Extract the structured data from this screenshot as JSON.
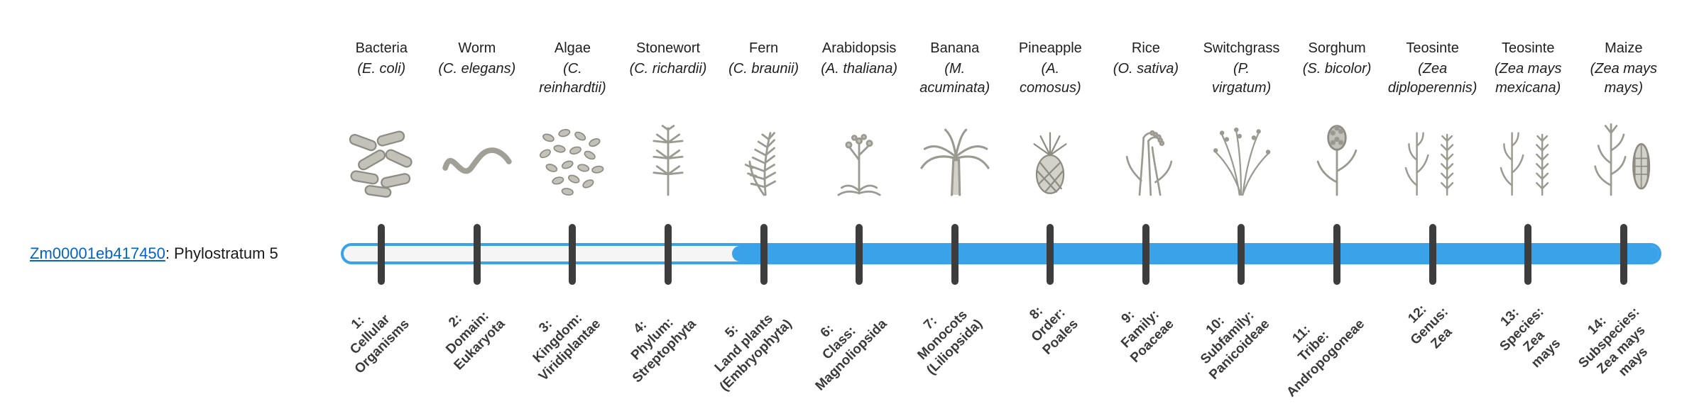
{
  "gene": {
    "id": "Zm00001eb417450",
    "label_suffix": ": Phylostratum 5"
  },
  "phylostratum": 5,
  "colors": {
    "bar_fill": "#3aa2e8",
    "bar_track": "#f5f5f5",
    "tick": "#3d3d3d",
    "link": "#0563C1",
    "illustration": "#9a9a90"
  },
  "columns": [
    {
      "name": "Bacteria",
      "sci_lines": [
        "(E. coli)"
      ],
      "icon": "bacteria",
      "stratum_lines": [
        "1:",
        "Cellular",
        "Organisms"
      ]
    },
    {
      "name": "Worm",
      "sci_lines": [
        "(C. elegans)"
      ],
      "icon": "worm",
      "stratum_lines": [
        "2:",
        "Domain:",
        "Eukaryota"
      ]
    },
    {
      "name": "Algae",
      "sci_lines": [
        "(C.",
        "reinhardtii)"
      ],
      "icon": "algae",
      "stratum_lines": [
        "3:",
        "Kingdom:",
        "Viridiplantae"
      ]
    },
    {
      "name": "Stonewort",
      "sci_lines": [
        "(C. richardii)"
      ],
      "icon": "stonewort",
      "stratum_lines": [
        "4:",
        "Phylum:",
        "Streptophyta"
      ]
    },
    {
      "name": "Fern",
      "sci_lines": [
        "(C. braunii)"
      ],
      "icon": "fern",
      "stratum_lines": [
        "5:",
        "Land plants",
        "(Embryophyta)"
      ]
    },
    {
      "name": "Arabidopsis",
      "sci_lines": [
        "(A. thaliana)"
      ],
      "icon": "arabidopsis",
      "stratum_lines": [
        "6:",
        "Class:",
        "Magnoliopsida"
      ]
    },
    {
      "name": "Banana",
      "sci_lines": [
        "(M.",
        "acuminata)"
      ],
      "icon": "banana",
      "stratum_lines": [
        "7:",
        "Monocots",
        "(Liliopsida)"
      ]
    },
    {
      "name": "Pineapple",
      "sci_lines": [
        "(A.",
        "comosus)"
      ],
      "icon": "pineapple",
      "stratum_lines": [
        "8:",
        "Order:",
        "Poales"
      ]
    },
    {
      "name": "Rice",
      "sci_lines": [
        "(O. sativa)"
      ],
      "icon": "rice",
      "stratum_lines": [
        "9:",
        "Family:",
        "Poaceae"
      ]
    },
    {
      "name": "Switchgrass",
      "sci_lines": [
        "(P.",
        "virgatum)"
      ],
      "icon": "switchgrass",
      "stratum_lines": [
        "10:",
        "Subfamily:",
        "Panicoideae"
      ]
    },
    {
      "name": "Sorghum",
      "sci_lines": [
        "(S. bicolor)"
      ],
      "icon": "sorghum",
      "stratum_lines": [
        "11:",
        "Tribe:",
        "Andropogoneae"
      ]
    },
    {
      "name": "Teosinte",
      "sci_lines": [
        "(Zea",
        "diploperennis)"
      ],
      "icon": "teosinte",
      "stratum_lines": [
        "12:",
        "Genus:",
        "Zea"
      ]
    },
    {
      "name": "Teosinte",
      "sci_lines": [
        "(Zea mays",
        "mexicana)"
      ],
      "icon": "teosinte",
      "stratum_lines": [
        "13:",
        "Species:",
        "Zea",
        "mays"
      ]
    },
    {
      "name": "Maize",
      "sci_lines": [
        "(Zea mays",
        "mays)"
      ],
      "icon": "maize",
      "stratum_lines": [
        "14:",
        "Subspecies:",
        "Zea mays",
        "mays"
      ]
    }
  ]
}
